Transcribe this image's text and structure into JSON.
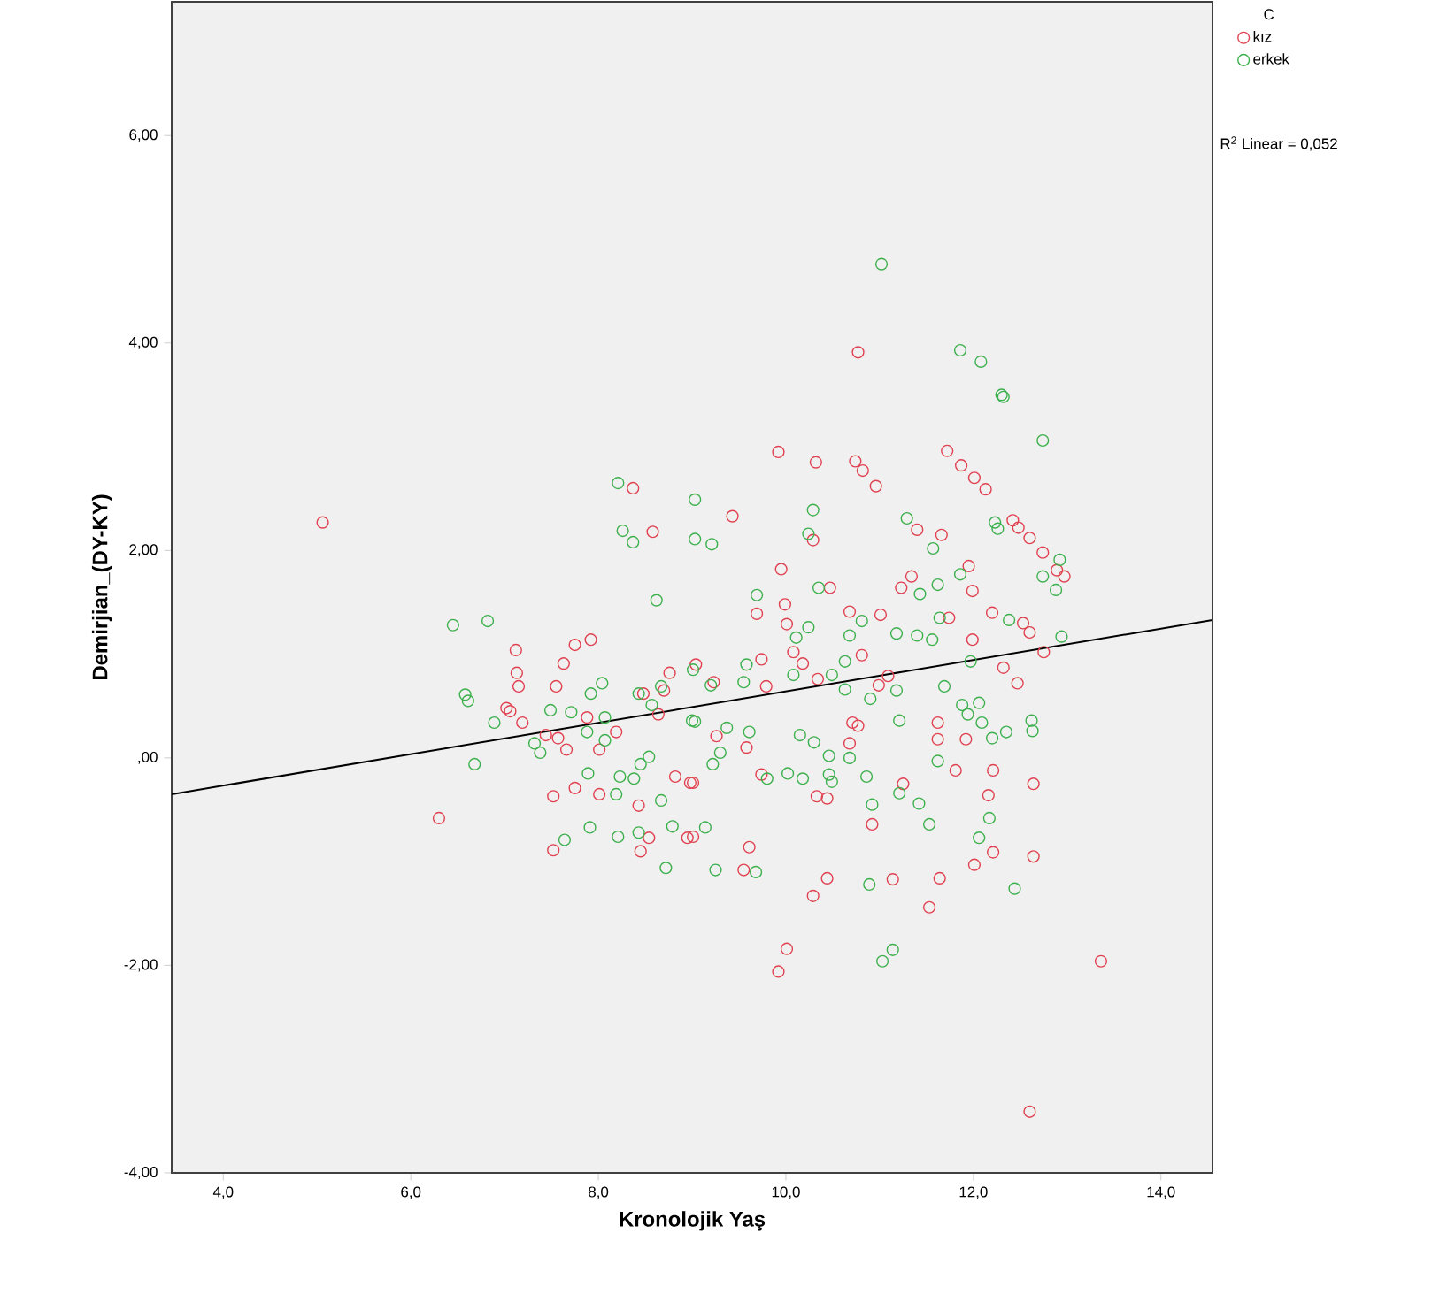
{
  "chart_data": {
    "type": "scatter",
    "xlabel": "Kronolojik Yaş",
    "ylabel": "Demirjian_(DY-KY)",
    "legend_title": "C",
    "annotations": [
      "R$^{2}$ Linear = 0,052"
    ],
    "xlim": [
      3.45,
      14.55
    ],
    "ylim": [
      -4,
      7.29
    ],
    "xticks": [
      {
        "value": 4,
        "label": "4,0"
      },
      {
        "value": 6,
        "label": "6,0"
      },
      {
        "value": 8,
        "label": "8,0"
      },
      {
        "value": 10,
        "label": "10,0"
      },
      {
        "value": 12,
        "label": "12,0"
      },
      {
        "value": 14,
        "label": "14,0"
      }
    ],
    "yticks": [
      {
        "value": -4,
        "label": "-4,00"
      },
      {
        "value": -2,
        "label": "-2,00"
      },
      {
        "value": 0,
        "label": ",00"
      },
      {
        "value": 2,
        "label": "2,00"
      },
      {
        "value": 4,
        "label": "4,00"
      },
      {
        "value": 6,
        "label": "6,00"
      }
    ],
    "legend": "top right",
    "marker": "circle",
    "series": [
      {
        "name": "kız",
        "color": "#e0404f",
        "x": [
          5.06,
          8.37,
          8.58,
          7.12,
          7.75,
          7.92,
          10.77,
          9.92,
          10.32,
          10.74,
          10.82,
          10.96,
          11.72,
          11.87,
          12.01,
          12.13,
          9.43,
          10.29,
          11.4,
          11.66,
          12.42,
          12.48,
          12.6,
          12.74,
          12.89,
          12.97,
          9.95,
          9.69,
          9.99,
          10.47,
          10.01,
          10.68,
          11.01,
          11.23,
          11.34,
          11.95,
          11.99,
          11.74,
          12.2,
          12.53,
          12.6,
          11.99,
          7.13,
          7.15,
          7.63,
          7.55,
          7.02,
          7.06,
          7.19,
          7.88,
          8.19,
          7.44,
          7.57,
          7.66,
          8.01,
          6.3,
          8.48,
          8.76,
          8.7,
          8.64,
          7.75,
          7.52,
          8.01,
          8.43,
          8.82,
          8.98,
          7.52,
          8.54,
          8.45,
          8.95,
          9.04,
          9.23,
          9.74,
          9.79,
          10.08,
          10.18,
          10.34,
          10.81,
          10.99,
          11.09,
          12.32,
          12.47,
          12.75,
          9.26,
          9.01,
          9.58,
          10.68,
          10.71,
          10.77,
          9.74,
          10.33,
          10.44,
          11.25,
          10.92,
          11.62,
          11.62,
          11.92,
          11.81,
          12.21,
          12.64,
          12.16,
          12.21,
          12.01,
          12.64,
          9.01,
          9.61,
          9.55,
          10.44,
          10.29,
          11.14,
          11.64,
          11.53,
          10.01,
          9.92,
          13.36,
          12.6
        ],
        "values": [
          2.27,
          2.6,
          2.18,
          1.04,
          1.09,
          1.14,
          3.91,
          2.95,
          2.85,
          2.86,
          2.77,
          2.62,
          2.96,
          2.82,
          2.7,
          2.59,
          2.33,
          2.1,
          2.2,
          2.15,
          2.29,
          2.22,
          2.12,
          1.98,
          1.81,
          1.75,
          1.82,
          1.39,
          1.48,
          1.64,
          1.29,
          1.41,
          1.38,
          1.64,
          1.75,
          1.85,
          1.61,
          1.35,
          1.4,
          1.3,
          1.21,
          1.14,
          0.82,
          0.69,
          0.91,
          0.69,
          0.48,
          0.45,
          0.34,
          0.39,
          0.25,
          0.22,
          0.19,
          0.08,
          0.08,
          -0.58,
          0.62,
          0.82,
          0.65,
          0.42,
          -0.29,
          -0.37,
          -0.35,
          -0.46,
          -0.18,
          -0.24,
          -0.89,
          -0.77,
          -0.9,
          -0.77,
          0.9,
          0.73,
          0.95,
          0.69,
          1.02,
          0.91,
          0.76,
          0.99,
          0.7,
          0.79,
          0.87,
          0.72,
          1.02,
          0.21,
          -0.24,
          0.1,
          0.14,
          0.34,
          0.31,
          -0.16,
          -0.37,
          -0.39,
          -0.25,
          -0.64,
          0.34,
          0.18,
          0.18,
          -0.12,
          -0.12,
          -0.25,
          -0.36,
          -0.91,
          -1.03,
          -0.95,
          -0.76,
          -0.86,
          -1.08,
          -1.16,
          -1.33,
          -1.17,
          -1.16,
          -1.44,
          -1.84,
          -2.06,
          -1.96,
          -3.41
        ]
      },
      {
        "name": "erkek",
        "color": "#3cb04c",
        "x": [
          8.21,
          8.26,
          8.37,
          9.03,
          9.03,
          8.62,
          6.45,
          6.82,
          11.02,
          11.86,
          12.08,
          12.3,
          12.32,
          12.74,
          9.21,
          10.29,
          10.24,
          11.29,
          11.57,
          12.23,
          12.26,
          12.92,
          12.88,
          12.74,
          9.69,
          10.35,
          10.24,
          10.11,
          10.81,
          10.68,
          11.18,
          11.4,
          11.43,
          11.62,
          11.86,
          11.64,
          12.38,
          12.94,
          11.56,
          6.58,
          6.61,
          6.89,
          7.49,
          7.71,
          7.92,
          8.04,
          8.07,
          7.88,
          7.32,
          7.38,
          8.07,
          6.68,
          8.43,
          8.67,
          8.57,
          9.01,
          9.0,
          7.89,
          8.23,
          8.19,
          8.45,
          8.54,
          8.38,
          8.67,
          7.91,
          7.64,
          8.21,
          8.43,
          8.79,
          8.72,
          9.2,
          9.58,
          9.55,
          10.08,
          10.49,
          10.63,
          10.63,
          10.9,
          11.18,
          11.69,
          11.97,
          11.88,
          12.06,
          11.94,
          9.03,
          9.37,
          9.3,
          9.22,
          9.61,
          10.15,
          10.3,
          10.46,
          10.68,
          11.21,
          10.02,
          9.8,
          10.18,
          10.46,
          10.49,
          10.86,
          11.21,
          10.92,
          11.42,
          11.53,
          11.62,
          12.09,
          12.2,
          12.35,
          12.62,
          12.63,
          12.17,
          12.06,
          12.44,
          9.14,
          9.25,
          9.68,
          10.89,
          11.14,
          11.03
        ],
        "values": [
          2.65,
          2.19,
          2.08,
          2.49,
          2.11,
          1.52,
          1.28,
          1.32,
          4.76,
          3.93,
          3.82,
          3.5,
          3.48,
          3.06,
          2.06,
          2.39,
          2.16,
          2.31,
          2.02,
          2.27,
          2.21,
          1.91,
          1.62,
          1.75,
          1.57,
          1.64,
          1.26,
          1.16,
          1.32,
          1.18,
          1.2,
          1.18,
          1.58,
          1.67,
          1.77,
          1.35,
          1.33,
          1.17,
          1.14,
          0.61,
          0.55,
          0.34,
          0.46,
          0.44,
          0.62,
          0.72,
          0.39,
          0.25,
          0.14,
          0.05,
          0.17,
          -0.06,
          0.62,
          0.69,
          0.51,
          0.85,
          0.36,
          -0.15,
          -0.18,
          -0.35,
          -0.06,
          0.01,
          -0.2,
          -0.41,
          -0.67,
          -0.79,
          -0.76,
          -0.72,
          -0.66,
          -1.06,
          0.7,
          0.9,
          0.73,
          0.8,
          0.8,
          0.93,
          0.66,
          0.57,
          0.65,
          0.69,
          0.93,
          0.51,
          0.53,
          0.42,
          0.35,
          0.29,
          0.05,
          -0.06,
          0.25,
          0.22,
          0.15,
          0.02,
          0.0,
          0.36,
          -0.15,
          -0.2,
          -0.2,
          -0.16,
          -0.23,
          -0.18,
          -0.34,
          -0.45,
          -0.44,
          -0.64,
          -0.03,
          0.34,
          0.19,
          0.25,
          0.36,
          0.26,
          -0.58,
          -0.77,
          -1.26,
          -0.67,
          -1.08,
          -1.1,
          -1.22,
          -1.85,
          -1.96
        ]
      },
      {
        "type": "line",
        "color": "#000000",
        "marker": "none",
        "x": [
          3.45,
          14.55
        ],
        "values": [
          -0.35,
          1.33
        ]
      }
    ]
  }
}
